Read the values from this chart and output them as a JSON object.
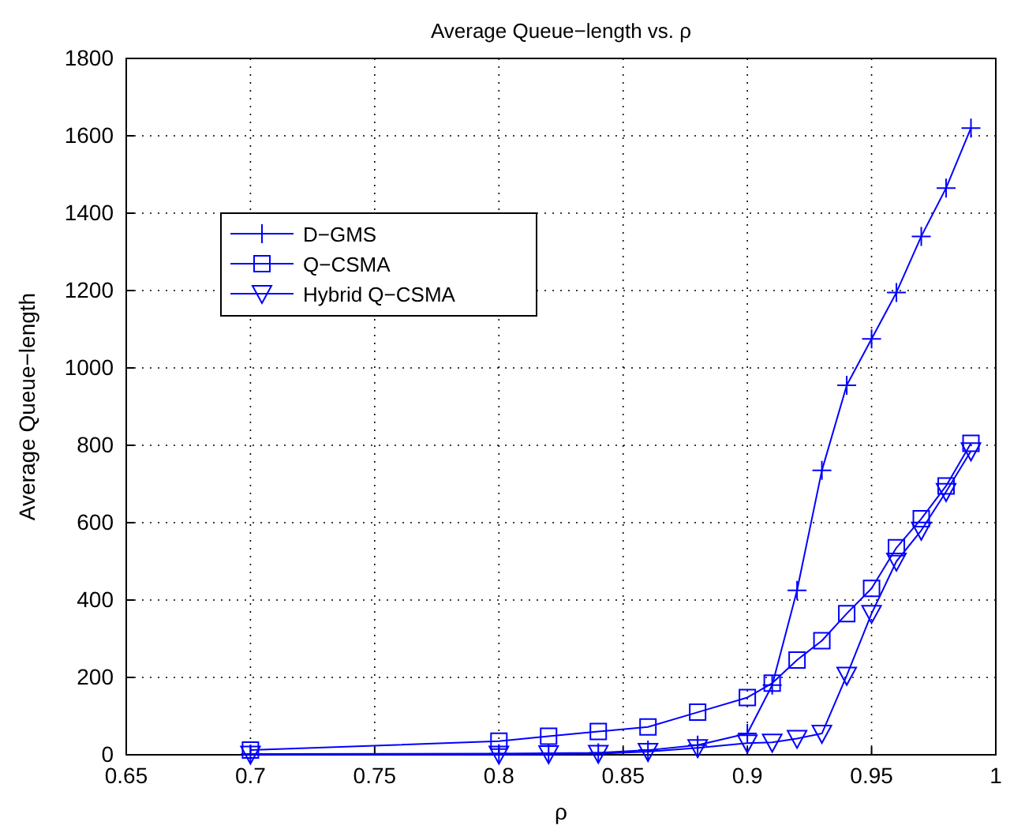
{
  "chart_data": {
    "type": "line",
    "title": "Average Queue−length vs. ρ",
    "xlabel": "ρ",
    "ylabel": "Average Queue−length",
    "x": [
      0.7,
      0.8,
      0.82,
      0.84,
      0.86,
      0.88,
      0.9,
      0.91,
      0.92,
      0.93,
      0.94,
      0.95,
      0.96,
      0.97,
      0.98,
      0.99
    ],
    "series": [
      {
        "name": "D−GMS",
        "color": "#0000ff",
        "marker": "cross",
        "values": [
          2,
          3,
          4,
          5,
          12,
          25,
          55,
          180,
          425,
          735,
          955,
          1075,
          1195,
          1340,
          1465,
          1620
        ]
      },
      {
        "name": "Q−CSMA",
        "color": "#0000ff",
        "marker": "square",
        "values": [
          12,
          35,
          48,
          60,
          72,
          110,
          148,
          185,
          245,
          295,
          365,
          430,
          535,
          610,
          695,
          805
        ]
      },
      {
        "name": "Hybrid Q−CSMA",
        "color": "#0000ff",
        "marker": "triangle",
        "values": [
          1,
          1,
          2,
          3,
          8,
          18,
          30,
          32,
          42,
          55,
          205,
          365,
          500,
          580,
          680,
          785
        ]
      }
    ],
    "xlim": [
      0.65,
      1
    ],
    "xticks": [
      0.65,
      0.7,
      0.75,
      0.8,
      0.85,
      0.9,
      0.95,
      1
    ],
    "ylim": [
      0,
      1800
    ],
    "yticks": [
      0,
      200,
      400,
      600,
      800,
      1000,
      1200,
      1400,
      1600,
      1800
    ],
    "grid": true,
    "legend": "top left",
    "line_style": "solid"
  }
}
